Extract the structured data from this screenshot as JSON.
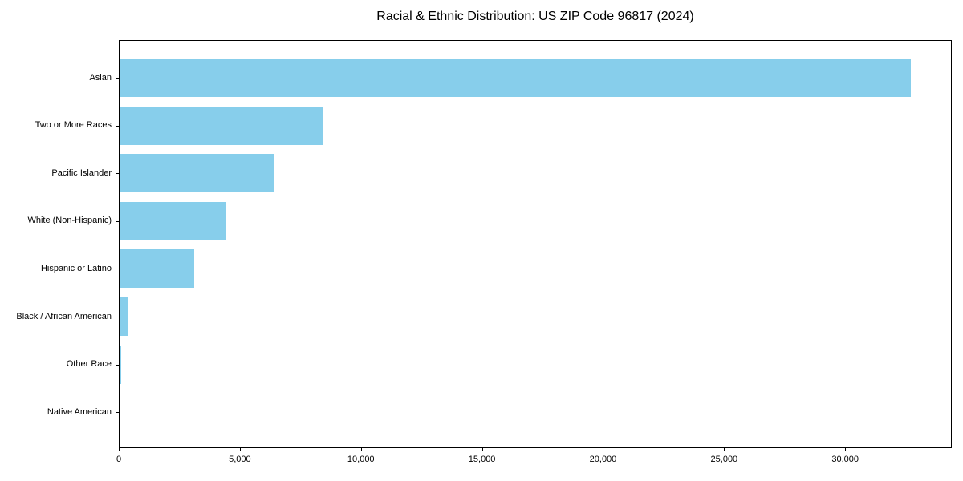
{
  "chart_data": {
    "type": "bar",
    "orientation": "horizontal",
    "title": "Racial & Ethnic Distribution: US ZIP Code 96817 (2024)",
    "categories": [
      "Asian",
      "Two or More Races",
      "Pacific Islander",
      "White (Non-Hispanic)",
      "Hispanic or Latino",
      "Black / African American",
      "Other Race",
      "Native American"
    ],
    "values": [
      32700,
      8430,
      6440,
      4420,
      3100,
      410,
      110,
      0
    ],
    "xlabel": "",
    "ylabel": "",
    "xlim": [
      0,
      34400
    ],
    "x_ticks": [
      0,
      5000,
      10000,
      15000,
      20000,
      25000,
      30000
    ],
    "x_tick_labels": [
      "0",
      "5,000",
      "10,000",
      "15,000",
      "20,000",
      "25,000",
      "30,000"
    ],
    "grid": false,
    "legend_position": "none",
    "bar_color": "#87ceeb",
    "background_color": "#ffffff",
    "frame_color": "#000000",
    "text_color": "#000000"
  }
}
